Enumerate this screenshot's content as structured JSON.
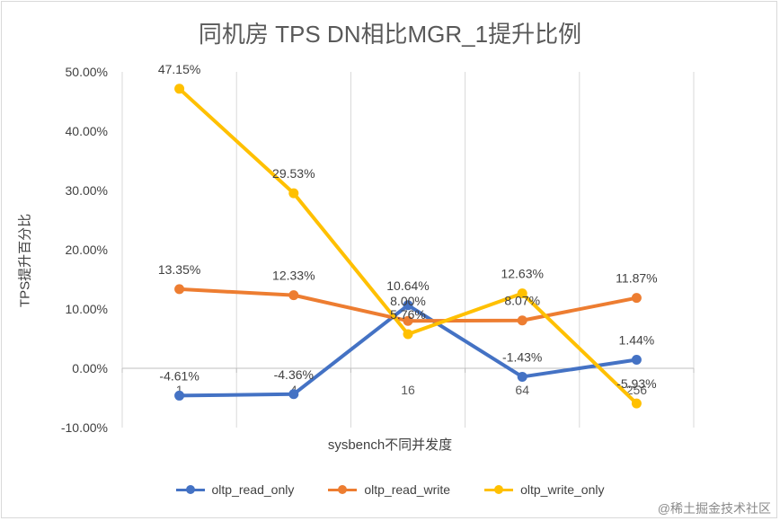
{
  "chart_data": {
    "type": "line",
    "title": "同机房 TPS DN相比MGR_1提升比例",
    "xlabel": "sysbench不同并发度",
    "ylabel": "TPS提升百分比",
    "categories": [
      "1",
      "4",
      "16",
      "64",
      "256"
    ],
    "ylim": [
      -10,
      50
    ],
    "yticks": [
      "-10.00%",
      "0.00%",
      "10.00%",
      "20.00%",
      "30.00%",
      "40.00%",
      "50.00%"
    ],
    "grid": "vertical",
    "legend": "bottom",
    "series": [
      {
        "name": "oltp_read_only",
        "values": [
          -4.61,
          -4.36,
          10.64,
          -1.43,
          1.44
        ],
        "labels": [
          "-4.61%",
          "-4.36%",
          "10.64%",
          "-1.43%",
          "1.44%"
        ],
        "color": "#4472C4"
      },
      {
        "name": "oltp_read_write",
        "values": [
          13.35,
          12.33,
          8.0,
          8.07,
          11.87
        ],
        "labels": [
          "13.35%",
          "12.33%",
          "8.00%",
          "8.07%",
          "11.87%"
        ],
        "color": "#ED7D31"
      },
      {
        "name": "oltp_write_only",
        "values": [
          47.15,
          29.53,
          5.76,
          12.63,
          -5.93
        ],
        "labels": [
          "47.15%",
          "29.53%",
          "5.76%",
          "12.63%",
          "-5.93%"
        ],
        "color": "#FFC000"
      }
    ]
  },
  "watermark": "@稀土掘金技术社区"
}
